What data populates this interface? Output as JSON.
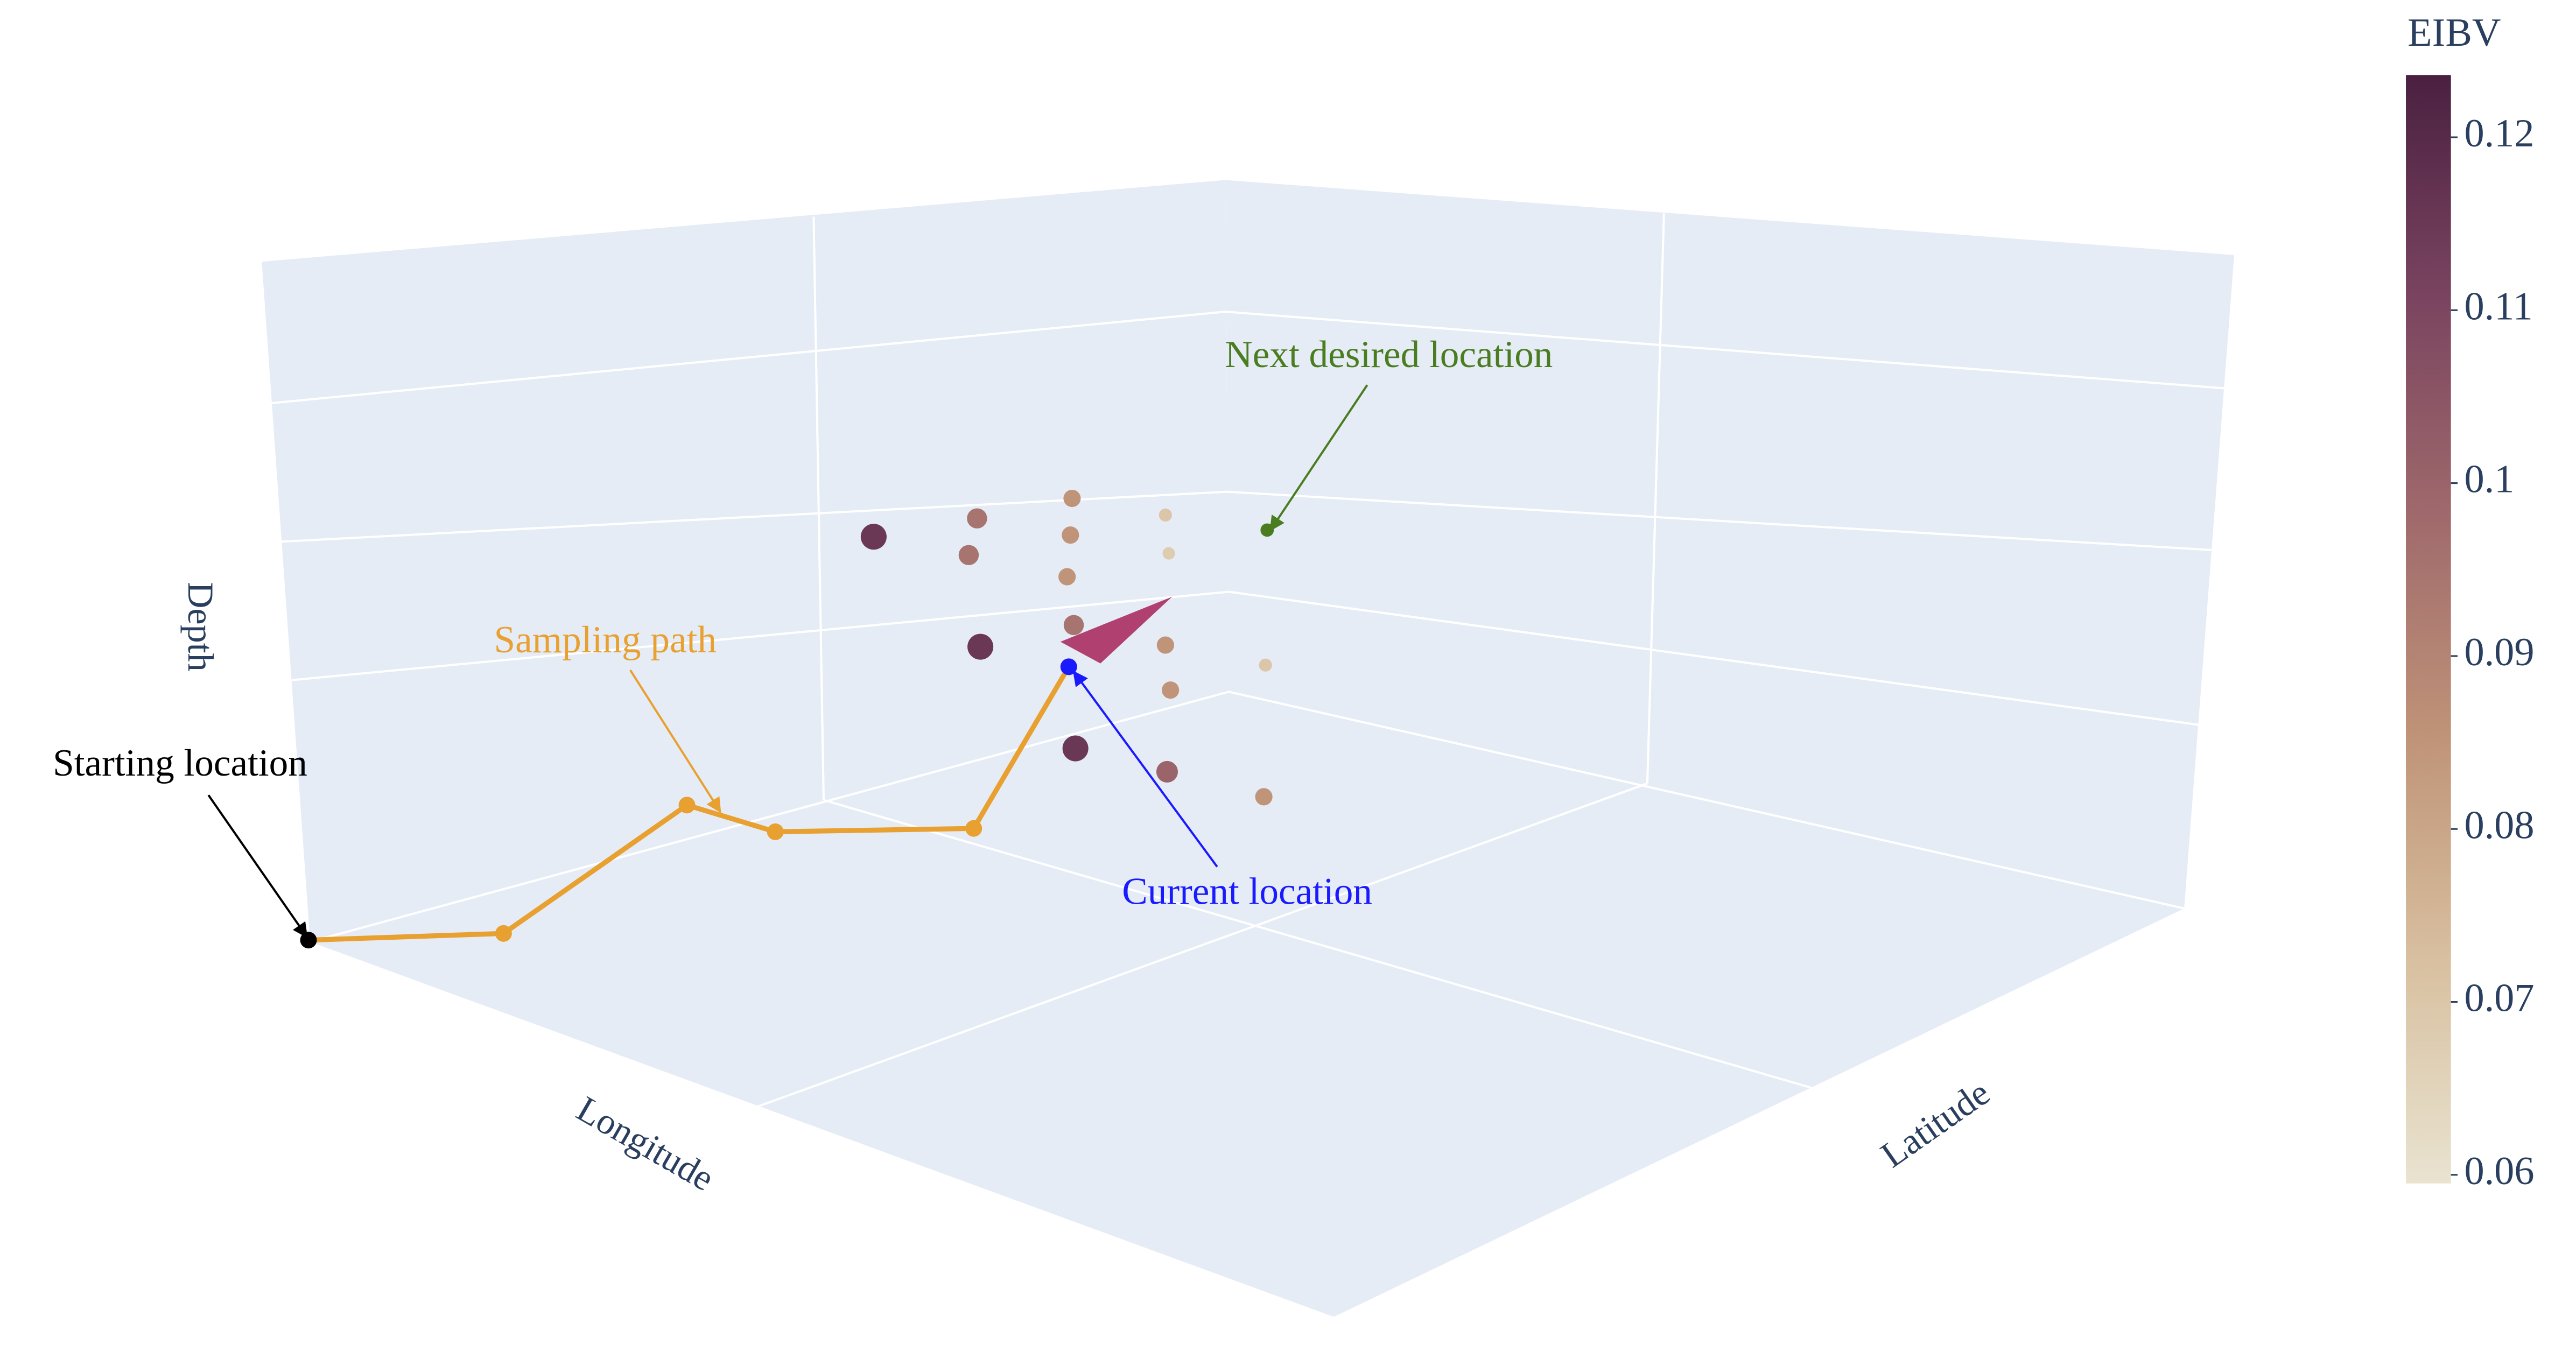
{
  "chart_data": {
    "type": "scatter3d",
    "xaxis_title": "Longitude",
    "yaxis_title": "Latitude",
    "zaxis_title": "Depth",
    "colorbar": {
      "title": "EIBV",
      "clim": [
        0.0595,
        0.1236
      ],
      "ticks": [
        0.06,
        0.07,
        0.08,
        0.09,
        0.1,
        0.11,
        0.12
      ],
      "colorscale": [
        "#e9e3d0",
        "#d8c0a0",
        "#c09478",
        "#a06a6c",
        "#7a4460",
        "#4a2040"
      ]
    },
    "values": [
      0.115,
      0.095,
      0.095,
      0.085,
      0.085,
      0.085,
      0.07,
      0.068,
      0.115,
      0.095,
      0.085,
      0.085,
      0.115,
      0.1,
      0.07,
      0.085
    ],
    "path_color": "#e8a030",
    "annotations": [
      {
        "text": "Next desired location",
        "color": "#4a7c20"
      },
      {
        "text": "Sampling path",
        "color": "#e8a030"
      },
      {
        "text": "Starting location",
        "color": "#000000"
      },
      {
        "text": "Current location",
        "color": "#1a1aff"
      }
    ]
  }
}
